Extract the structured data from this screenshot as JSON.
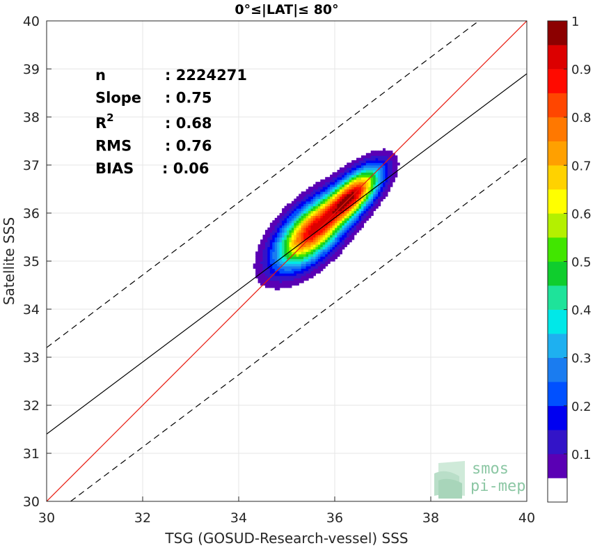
{
  "chart_data": {
    "type": "contour",
    "title": "0°≤|LAT|≤ 80°",
    "xlabel": "TSG (GOSUD-Research-vessel) SSS",
    "ylabel": "Satellite SSS",
    "xlim": [
      30,
      40
    ],
    "ylim": [
      30,
      40
    ],
    "xticks": [
      "30",
      "32",
      "34",
      "36",
      "38",
      "40"
    ],
    "yticks": [
      "30",
      "31",
      "32",
      "33",
      "34",
      "35",
      "36",
      "37",
      "38",
      "39",
      "40"
    ],
    "grid": true,
    "stats": [
      {
        "label": "n",
        "value": ": 2224271"
      },
      {
        "label": "Slope",
        "value": ": 0.75"
      },
      {
        "label": "R",
        "sup": "2",
        "value": ": 0.68"
      },
      {
        "label": "RMS",
        "value": ": 0.76"
      },
      {
        "label": "BIAS",
        "value": ": 0.06"
      }
    ],
    "lines": [
      {
        "kind": "one-to-one",
        "color": "#e8180c",
        "style": "solid",
        "x": [
          30,
          40
        ],
        "y": [
          30,
          40
        ]
      },
      {
        "kind": "regression",
        "color": "#000000",
        "style": "solid",
        "x": [
          30,
          40
        ],
        "y": [
          31.4,
          38.9
        ]
      },
      {
        "kind": "upper-bound",
        "color": "#000000",
        "style": "dashed",
        "x": [
          30,
          39
        ],
        "y": [
          33.2,
          40
        ]
      },
      {
        "kind": "lower-bound",
        "color": "#000000",
        "style": "dashed",
        "x": [
          30.5,
          40
        ],
        "y": [
          30,
          37.15
        ]
      }
    ],
    "density_peaks": [
      {
        "x": 35.5,
        "y": 35.6,
        "weight": 1.0,
        "sx": 0.42,
        "sy": 0.42
      },
      {
        "x": 36.4,
        "y": 36.4,
        "weight": 0.95,
        "sx": 0.34,
        "sy": 0.3
      }
    ],
    "colorbar": {
      "range": [
        0,
        1
      ],
      "ticks": [
        "0.1",
        "0.2",
        "0.3",
        "0.4",
        "0.5",
        "0.6",
        "0.7",
        "0.8",
        "0.9",
        "1"
      ],
      "colors": [
        "#ffffff",
        "#5a00b4",
        "#3314c8",
        "#0000f0",
        "#0050ff",
        "#1a7cf0",
        "#1eb0f0",
        "#00e8e8",
        "#1ee39a",
        "#0fcd2d",
        "#41e600",
        "#b4f000",
        "#ffff00",
        "#ffd200",
        "#ffa000",
        "#ff7800",
        "#ff4600",
        "#ff0a00",
        "#dc0000",
        "#8c0000"
      ]
    },
    "watermark": [
      "smos",
      "pi-mep"
    ]
  }
}
